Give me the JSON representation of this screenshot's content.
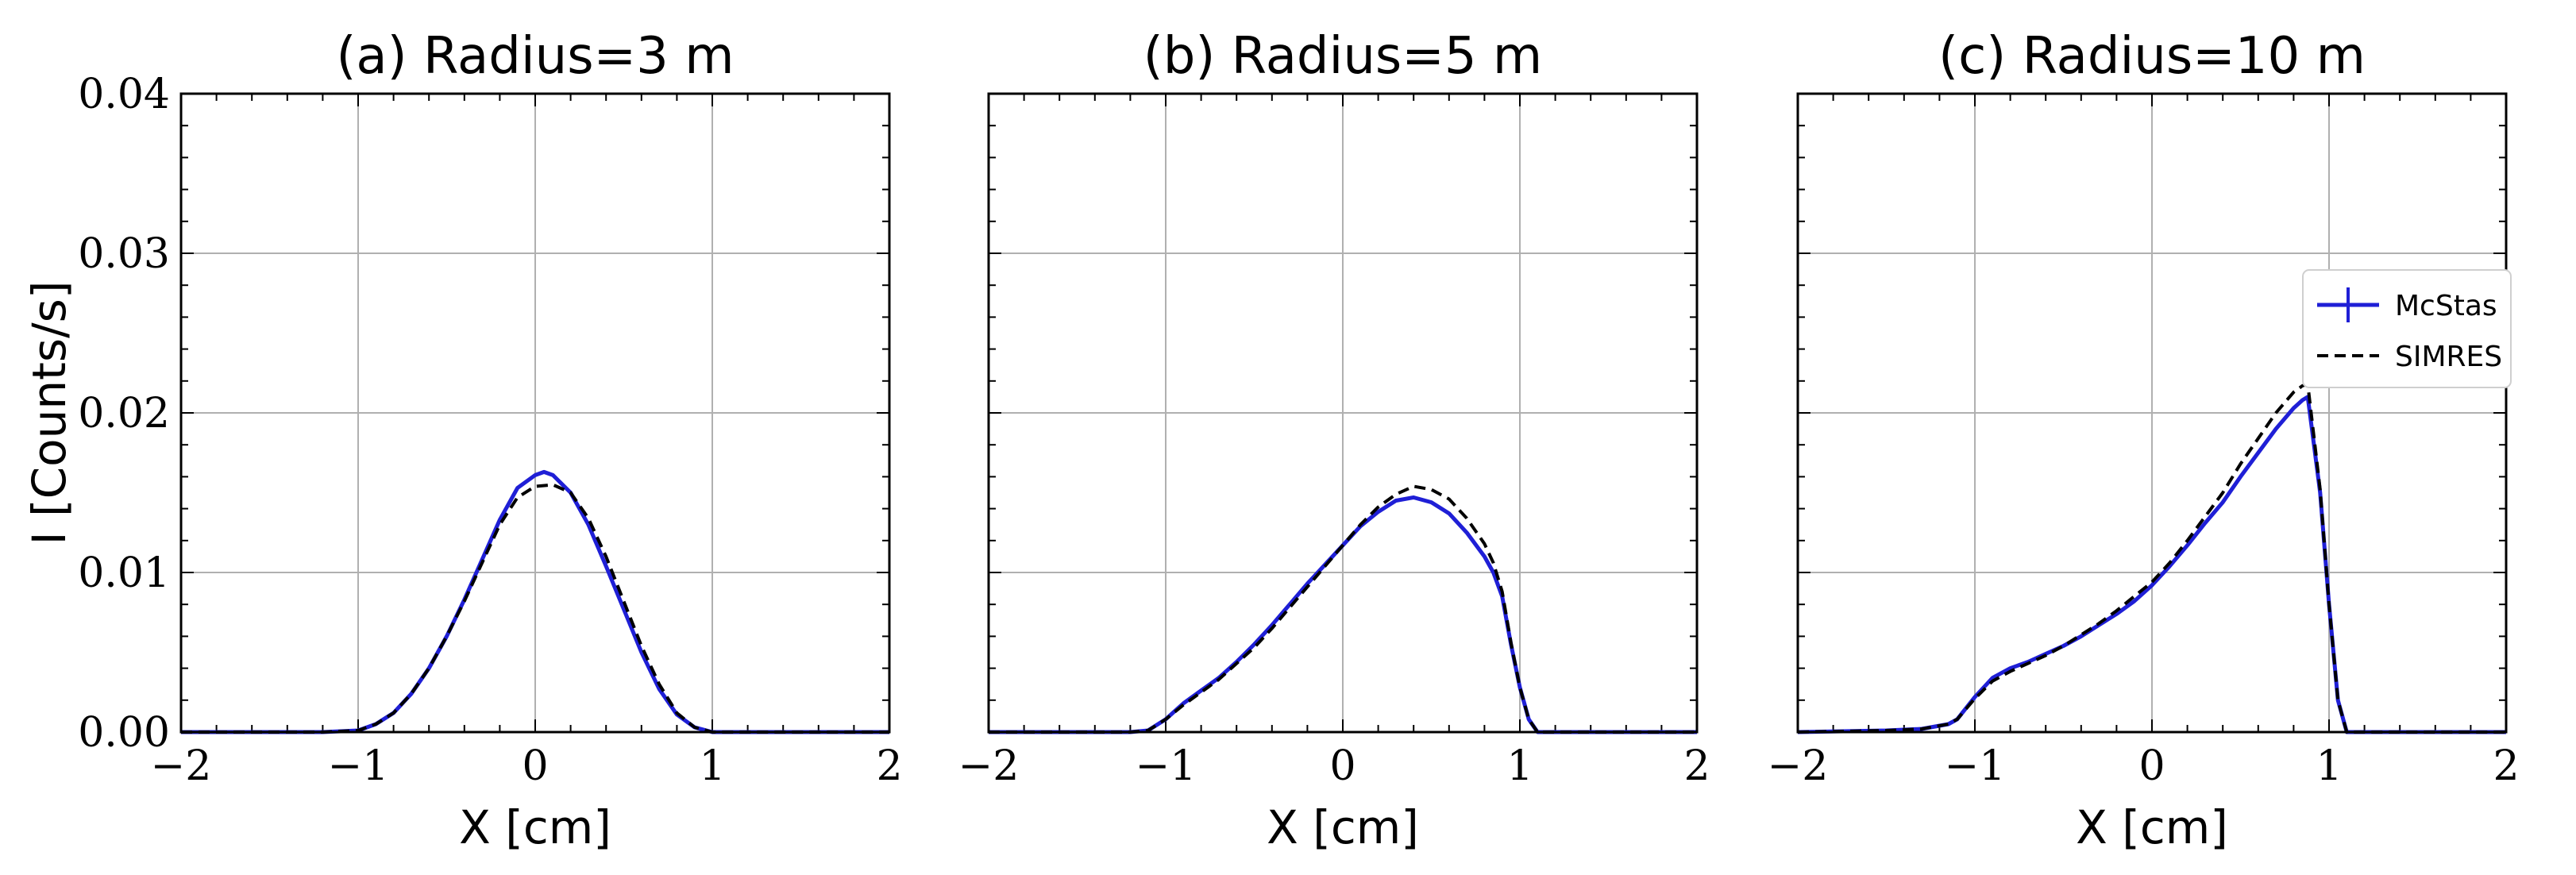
{
  "chart_data": [
    {
      "type": "line",
      "title": "(a) Radius=3 m",
      "xlabel": "X [cm]",
      "ylabel": "I [Counts/s]",
      "xlim": [
        -2,
        2
      ],
      "ylim": [
        0,
        0.04
      ],
      "xticks": [
        "−2",
        "−1",
        "0",
        "1",
        "2"
      ],
      "yticks": [
        "0.00",
        "0.01",
        "0.02",
        "0.03",
        "0.04"
      ],
      "grid": true,
      "series": [
        {
          "name": "McStas",
          "color": "#1f1fd6",
          "style": "solid",
          "x": [
            -2,
            -1.2,
            -1.0,
            -0.9,
            -0.8,
            -0.7,
            -0.6,
            -0.5,
            -0.4,
            -0.3,
            -0.2,
            -0.1,
            0.0,
            0.05,
            0.1,
            0.2,
            0.3,
            0.4,
            0.5,
            0.6,
            0.7,
            0.8,
            0.9,
            1.0,
            1.2,
            2
          ],
          "y": [
            0,
            0,
            0.0001,
            0.0005,
            0.0012,
            0.0024,
            0.004,
            0.006,
            0.0083,
            0.0108,
            0.0133,
            0.0153,
            0.0161,
            0.0163,
            0.0161,
            0.015,
            0.013,
            0.0104,
            0.0077,
            0.005,
            0.0027,
            0.0011,
            0.0003,
            0.0,
            0,
            0
          ]
        },
        {
          "name": "SIMRES",
          "color": "#000000",
          "style": "dashed",
          "x": [
            -2,
            -1.2,
            -1.0,
            -0.9,
            -0.8,
            -0.7,
            -0.6,
            -0.5,
            -0.4,
            -0.3,
            -0.2,
            -0.1,
            0.0,
            0.1,
            0.2,
            0.3,
            0.4,
            0.5,
            0.6,
            0.7,
            0.8,
            0.9,
            1.0,
            1.2,
            2
          ],
          "y": [
            0,
            0,
            0.0001,
            0.0005,
            0.0012,
            0.0024,
            0.004,
            0.006,
            0.0082,
            0.0106,
            0.013,
            0.0147,
            0.0154,
            0.0155,
            0.015,
            0.0134,
            0.011,
            0.0082,
            0.0054,
            0.003,
            0.0012,
            0.0003,
            0.0,
            0,
            0
          ]
        }
      ]
    },
    {
      "type": "line",
      "title": "(b) Radius=5 m",
      "xlabel": "X [cm]",
      "xlim": [
        -2,
        2
      ],
      "ylim": [
        0,
        0.04
      ],
      "xticks": [
        "−2",
        "−1",
        "0",
        "1",
        "2"
      ],
      "grid": true,
      "series": [
        {
          "name": "McStas",
          "color": "#1f1fd6",
          "style": "solid",
          "x": [
            -2,
            -1.2,
            -1.1,
            -1.0,
            -0.9,
            -0.8,
            -0.7,
            -0.6,
            -0.5,
            -0.4,
            -0.3,
            -0.2,
            -0.1,
            0.0,
            0.1,
            0.2,
            0.3,
            0.4,
            0.5,
            0.6,
            0.7,
            0.8,
            0.85,
            0.9,
            0.95,
            1.0,
            1.05,
            1.1,
            1.2,
            2
          ],
          "y": [
            0,
            0,
            0.0001,
            0.0008,
            0.0018,
            0.0026,
            0.0034,
            0.0044,
            0.0055,
            0.0067,
            0.008,
            0.0093,
            0.0105,
            0.0117,
            0.0129,
            0.0138,
            0.0145,
            0.0147,
            0.0144,
            0.0137,
            0.0125,
            0.011,
            0.01,
            0.0085,
            0.0055,
            0.0028,
            0.0008,
            0.0,
            0,
            0
          ]
        },
        {
          "name": "SIMRES",
          "color": "#000000",
          "style": "dashed",
          "x": [
            -2,
            -1.2,
            -1.1,
            -1.0,
            -0.9,
            -0.8,
            -0.7,
            -0.6,
            -0.5,
            -0.4,
            -0.3,
            -0.2,
            -0.1,
            0.0,
            0.1,
            0.2,
            0.3,
            0.4,
            0.5,
            0.6,
            0.7,
            0.8,
            0.85,
            0.9,
            0.95,
            1.0,
            1.05,
            1.1,
            1.2,
            2
          ],
          "y": [
            0,
            0,
            0.0001,
            0.0008,
            0.0017,
            0.0025,
            0.0033,
            0.0043,
            0.0053,
            0.0065,
            0.0078,
            0.0091,
            0.0104,
            0.0117,
            0.013,
            0.0141,
            0.0149,
            0.0154,
            0.0152,
            0.0146,
            0.0134,
            0.0118,
            0.0106,
            0.0088,
            0.0056,
            0.0028,
            0.0008,
            0.0,
            0,
            0
          ]
        }
      ]
    },
    {
      "type": "line",
      "title": "(c) Radius=10 m",
      "xlabel": "X [cm]",
      "xlim": [
        -2,
        2
      ],
      "ylim": [
        0,
        0.04
      ],
      "xticks": [
        "−2",
        "−1",
        "0",
        "1",
        "2"
      ],
      "grid": true,
      "legend": "right",
      "series": [
        {
          "name": "McStas",
          "color": "#1f1fd6",
          "style": "solid",
          "x": [
            -2,
            -1.5,
            -1.3,
            -1.15,
            -1.1,
            -1.0,
            -0.9,
            -0.8,
            -0.7,
            -0.6,
            -0.5,
            -0.4,
            -0.3,
            -0.2,
            -0.1,
            0.0,
            0.1,
            0.2,
            0.3,
            0.4,
            0.5,
            0.6,
            0.7,
            0.8,
            0.85,
            0.88,
            0.95,
            1.0,
            1.05,
            1.1,
            1.2,
            2
          ],
          "y": [
            0,
            0.0001,
            0.0002,
            0.0005,
            0.0008,
            0.0022,
            0.0034,
            0.004,
            0.0044,
            0.0049,
            0.0054,
            0.006,
            0.0067,
            0.0074,
            0.0082,
            0.0092,
            0.0104,
            0.0117,
            0.0131,
            0.0144,
            0.016,
            0.0175,
            0.019,
            0.0203,
            0.0208,
            0.021,
            0.015,
            0.008,
            0.002,
            0.0,
            0,
            0
          ]
        },
        {
          "name": "SIMRES",
          "color": "#000000",
          "style": "dashed",
          "x": [
            -2,
            -1.5,
            -1.3,
            -1.15,
            -1.1,
            -1.0,
            -0.9,
            -0.8,
            -0.7,
            -0.6,
            -0.5,
            -0.4,
            -0.3,
            -0.2,
            -0.1,
            0.0,
            0.1,
            0.2,
            0.3,
            0.4,
            0.5,
            0.6,
            0.7,
            0.8,
            0.85,
            0.88,
            0.95,
            1.0,
            1.05,
            1.1,
            1.2,
            2
          ],
          "y": [
            0,
            0.0001,
            0.0002,
            0.0005,
            0.0008,
            0.0021,
            0.0032,
            0.0038,
            0.0043,
            0.0048,
            0.0054,
            0.0061,
            0.0068,
            0.0076,
            0.0085,
            0.0094,
            0.0106,
            0.012,
            0.0135,
            0.015,
            0.0168,
            0.0184,
            0.02,
            0.0213,
            0.0217,
            0.0218,
            0.0152,
            0.008,
            0.002,
            0.0,
            0,
            0
          ]
        }
      ]
    }
  ]
}
